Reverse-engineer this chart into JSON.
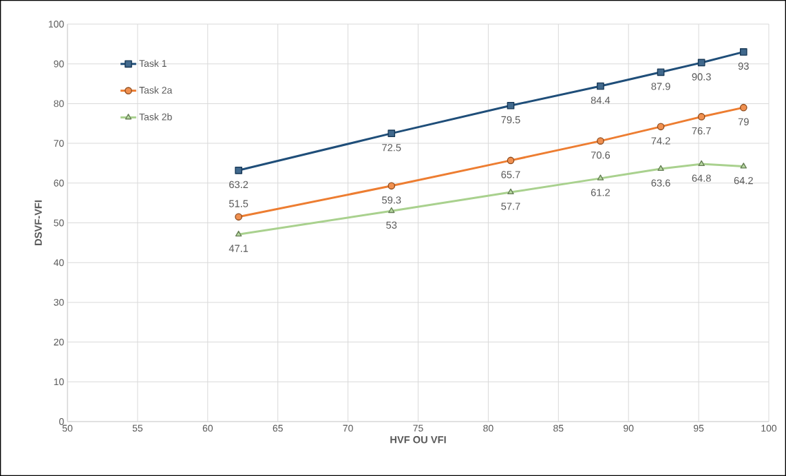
{
  "chart_data": {
    "type": "line",
    "xlabel": "HVF OU VFI",
    "ylabel": "DSVF-VFI",
    "x": [
      62.2,
      73.1,
      81.6,
      88.0,
      92.3,
      95.2,
      98.2
    ],
    "series": [
      {
        "name": "Task 1",
        "color": "#1f4e79",
        "marker": "square",
        "values": [
          63.2,
          72.5,
          79.5,
          84.4,
          87.9,
          90.3,
          93
        ]
      },
      {
        "name": "Task 2a",
        "color": "#ed7d31",
        "marker": "circle",
        "values": [
          51.5,
          59.3,
          65.7,
          70.6,
          74.2,
          76.7,
          79
        ]
      },
      {
        "name": "Task 2b",
        "color": "#a9d18e",
        "marker": "triangle",
        "values": [
          47.1,
          53,
          57.7,
          61.2,
          63.6,
          64.8,
          64.2
        ]
      }
    ],
    "xlim": [
      50,
      100
    ],
    "xticks": [
      50,
      55,
      60,
      65,
      70,
      75,
      80,
      85,
      90,
      95,
      100
    ],
    "ylim": [
      0,
      100
    ],
    "yticks": [
      0,
      10,
      20,
      30,
      40,
      50,
      60,
      70,
      80,
      90,
      100
    ],
    "grid": true,
    "legend": "top left",
    "data_labels": true,
    "line_style": "solid"
  }
}
